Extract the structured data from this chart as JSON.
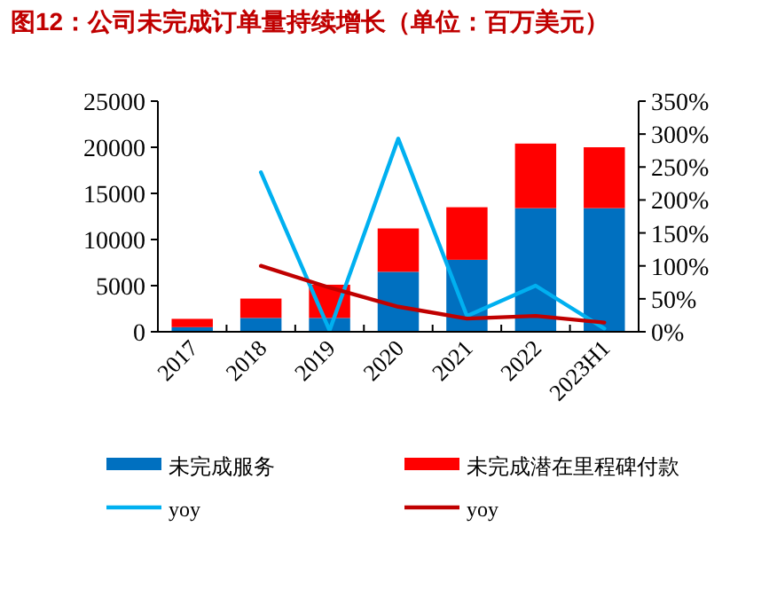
{
  "chart_data": {
    "type": "bar",
    "title": "图12：公司未完成订单量持续增长（单位：百万美元）",
    "categories": [
      "2017",
      "2018",
      "2019",
      "2020",
      "2021",
      "2022",
      "2023H1"
    ],
    "stacked": true,
    "legend": "bottom",
    "grid": false,
    "ylim": [
      0,
      25000
    ],
    "yticks": [
      0,
      5000,
      10000,
      15000,
      20000,
      25000
    ],
    "y2lim": [
      0,
      3.5
    ],
    "y2ticks": [
      {
        "value": 0,
        "label": "0%"
      },
      {
        "value": 0.5,
        "label": "50%"
      },
      {
        "value": 1,
        "label": "100%"
      },
      {
        "value": 1.5,
        "label": "150%"
      },
      {
        "value": 2,
        "label": "200%"
      },
      {
        "value": 2.5,
        "label": "250%"
      },
      {
        "value": 3,
        "label": "300%"
      },
      {
        "value": 3.5,
        "label": "350%"
      }
    ],
    "series": [
      {
        "name": "未完成服务",
        "color": "#0070c0",
        "values": [
          500,
          1500,
          1500,
          6500,
          7800,
          13400,
          13400
        ]
      },
      {
        "name": "未完成潜在里程碑付款",
        "color": "#ff0000",
        "values": [
          900,
          2100,
          3600,
          4700,
          5700,
          7000,
          6600
        ]
      },
      {
        "name": "yoy",
        "type": "line",
        "axis": "y2",
        "color": "#00b0f0",
        "values": [
          null,
          2.42,
          0.02,
          2.93,
          0.24,
          0.7,
          0.05
        ]
      },
      {
        "name": "yoy",
        "type": "line",
        "axis": "y2",
        "color": "#c00000",
        "values": [
          null,
          1.0,
          0.67,
          0.38,
          0.2,
          0.24,
          0.14
        ]
      }
    ]
  }
}
